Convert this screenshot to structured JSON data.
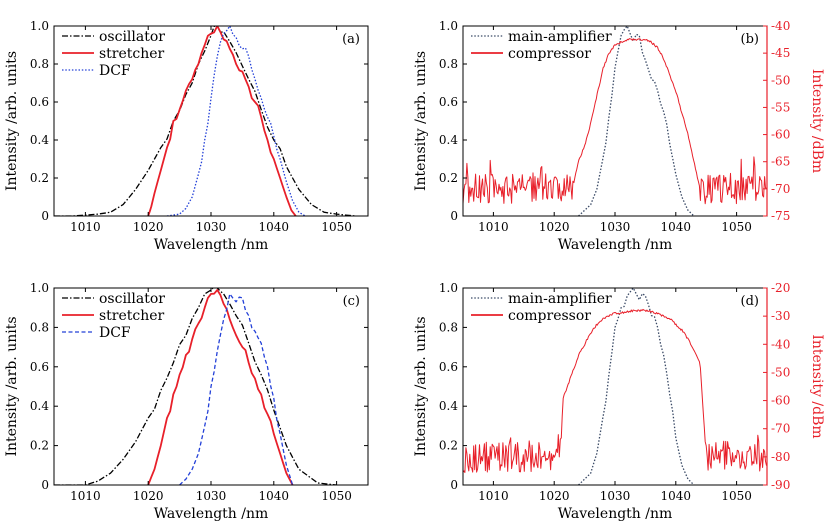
{
  "chart_data": [
    {
      "id": "a",
      "type": "line",
      "panel_label": "(a)",
      "xlabel": "Wavelength /nm",
      "ylabel": "Intensity /arb. units",
      "xlim": [
        1005,
        1055
      ],
      "ylim": [
        0,
        1.0
      ],
      "xticks": [
        "1010",
        "1020",
        "1030",
        "1040",
        "1050"
      ],
      "xtick_values": [
        1010,
        1020,
        1030,
        1040,
        1050
      ],
      "yticks": [
        "0",
        "0.2",
        "0.4",
        "0.6",
        "0.8",
        "1.0"
      ],
      "ytick_values": [
        0,
        0.2,
        0.4,
        0.6,
        0.8,
        1.0
      ],
      "legend_position": "top-left",
      "series": [
        {
          "name": "oscillator",
          "color": "#000000",
          "style": "dashdot",
          "axis": "left",
          "x": [
            1005,
            1008,
            1012,
            1014,
            1016,
            1018,
            1020,
            1022,
            1024,
            1026,
            1028,
            1030,
            1031,
            1032,
            1034,
            1036,
            1038,
            1040,
            1042,
            1044,
            1046,
            1048,
            1050,
            1053
          ],
          "y": [
            0,
            0,
            0.01,
            0.02,
            0.06,
            0.14,
            0.24,
            0.36,
            0.5,
            0.64,
            0.8,
            0.95,
            1.0,
            0.97,
            0.86,
            0.72,
            0.56,
            0.4,
            0.26,
            0.14,
            0.06,
            0.02,
            0.01,
            0
          ]
        },
        {
          "name": "stretcher",
          "color": "#e8202a",
          "style": "solid",
          "axis": "left",
          "x": [
            1020,
            1020.5,
            1021,
            1022,
            1023,
            1024,
            1025,
            1026,
            1027,
            1028,
            1029,
            1030,
            1031,
            1032,
            1033,
            1034,
            1035,
            1036,
            1037,
            1038,
            1039,
            1040,
            1041,
            1042,
            1042.8,
            1043.5
          ],
          "y": [
            0,
            0.05,
            0.12,
            0.24,
            0.36,
            0.5,
            0.56,
            0.66,
            0.72,
            0.8,
            0.9,
            0.96,
            1.0,
            0.93,
            0.88,
            0.8,
            0.76,
            0.68,
            0.6,
            0.52,
            0.4,
            0.3,
            0.2,
            0.1,
            0.03,
            0
          ]
        },
        {
          "name": "DCF",
          "color": "#2340d8",
          "style": "dotted",
          "axis": "left",
          "x": [
            1023,
            1025,
            1026,
            1027,
            1028,
            1029,
            1030,
            1031,
            1032,
            1033,
            1034,
            1035,
            1036,
            1037,
            1038,
            1039,
            1040,
            1041,
            1042,
            1043,
            1044,
            1045
          ],
          "y": [
            0,
            0.01,
            0.04,
            0.1,
            0.22,
            0.4,
            0.62,
            0.84,
            0.96,
            1.0,
            0.94,
            0.88,
            0.84,
            0.72,
            0.62,
            0.52,
            0.42,
            0.3,
            0.18,
            0.08,
            0.02,
            0
          ]
        }
      ]
    },
    {
      "id": "b",
      "type": "line",
      "panel_label": "(b)",
      "xlabel": "Wavelength /nm",
      "ylabel": "Intensity /arb. units",
      "y2label": "Intensity /dBm",
      "xlim": [
        1005,
        1055
      ],
      "ylim": [
        0,
        1.0
      ],
      "y2lim": [
        -75,
        -40
      ],
      "xticks": [
        "1010",
        "1020",
        "1030",
        "1040",
        "1050"
      ],
      "xtick_values": [
        1010,
        1020,
        1030,
        1040,
        1050
      ],
      "yticks": [
        "0",
        "0.2",
        "0.4",
        "0.6",
        "0.8",
        "1.0"
      ],
      "ytick_values": [
        0,
        0.2,
        0.4,
        0.6,
        0.8,
        1.0
      ],
      "y2ticks": [
        "-75",
        "-70",
        "-65",
        "-60",
        "-55",
        "-50",
        "-45",
        "-40"
      ],
      "y2tick_values": [
        -75,
        -70,
        -65,
        -60,
        -55,
        -50,
        -45,
        -40
      ],
      "legend_position": "top-left",
      "series": [
        {
          "name": "main-amplifier",
          "color": "#3a4a66",
          "style": "dotted",
          "axis": "left",
          "x": [
            1024,
            1026,
            1027,
            1028,
            1029,
            1030,
            1031,
            1032,
            1033,
            1034,
            1035,
            1036,
            1037,
            1038,
            1039,
            1040,
            1041,
            1042,
            1043
          ],
          "y": [
            0,
            0.06,
            0.14,
            0.3,
            0.52,
            0.78,
            0.95,
            1.0,
            0.92,
            0.95,
            0.82,
            0.72,
            0.66,
            0.55,
            0.38,
            0.22,
            0.1,
            0.03,
            0
          ]
        },
        {
          "name": "compressor",
          "color": "#e8202a",
          "style": "solid",
          "axis": "right",
          "noise": true,
          "x": [
            1005,
            1023,
            1024,
            1025,
            1026,
            1027,
            1028,
            1029,
            1030,
            1031,
            1032,
            1033,
            1034,
            1035,
            1036,
            1037,
            1038,
            1039,
            1040,
            1041,
            1042,
            1043,
            1044,
            1045,
            1055
          ],
          "y": [
            -70,
            -70,
            -65,
            -62,
            -58,
            -53,
            -48,
            -45,
            -43.5,
            -43,
            -42.5,
            -42.5,
            -42.5,
            -42.5,
            -43,
            -44,
            -46,
            -49,
            -52,
            -56,
            -60,
            -65,
            -70,
            -70,
            -70
          ]
        }
      ]
    },
    {
      "id": "c",
      "type": "line",
      "panel_label": "(c)",
      "xlabel": "Wavelength /nm",
      "ylabel": "Intensity /arb. units",
      "xlim": [
        1005,
        1055
      ],
      "ylim": [
        0,
        1.0
      ],
      "xticks": [
        "1010",
        "1020",
        "1030",
        "1040",
        "1050"
      ],
      "xtick_values": [
        1010,
        1020,
        1030,
        1040,
        1050
      ],
      "yticks": [
        "0",
        "0.2",
        "0.4",
        "0.6",
        "0.8",
        "1.0"
      ],
      "ytick_values": [
        0,
        0.2,
        0.4,
        0.6,
        0.8,
        1.0
      ],
      "legend_position": "top-left",
      "series": [
        {
          "name": "oscillator",
          "color": "#000000",
          "style": "dashdot",
          "axis": "left",
          "x": [
            1005,
            1010,
            1012,
            1014,
            1016,
            1018,
            1020,
            1022,
            1024,
            1026,
            1028,
            1030,
            1031,
            1032,
            1034,
            1036,
            1038,
            1040,
            1042,
            1044,
            1047,
            1050
          ],
          "y": [
            0,
            0,
            0.02,
            0.06,
            0.13,
            0.22,
            0.34,
            0.48,
            0.62,
            0.76,
            0.9,
            0.99,
            1.0,
            0.97,
            0.86,
            0.72,
            0.56,
            0.38,
            0.2,
            0.08,
            0.01,
            0
          ]
        },
        {
          "name": "stretcher",
          "color": "#e8202a",
          "style": "solid",
          "axis": "left",
          "x": [
            1020,
            1021,
            1022,
            1023,
            1024,
            1025,
            1026,
            1027,
            1028,
            1029,
            1030,
            1031,
            1032,
            1033,
            1034,
            1035,
            1036,
            1037,
            1038,
            1039,
            1040,
            1041,
            1042,
            1043
          ],
          "y": [
            0,
            0.08,
            0.2,
            0.34,
            0.46,
            0.56,
            0.66,
            0.74,
            0.82,
            0.9,
            0.97,
            0.99,
            0.92,
            0.84,
            0.76,
            0.7,
            0.62,
            0.54,
            0.46,
            0.36,
            0.26,
            0.16,
            0.06,
            0
          ]
        },
        {
          "name": "DCF",
          "color": "#2340d8",
          "style": "dashed",
          "axis": "left",
          "x": [
            1025,
            1026,
            1027,
            1028,
            1029,
            1030,
            1031,
            1032,
            1033,
            1034,
            1035,
            1036,
            1037,
            1038,
            1039,
            1040,
            1041,
            1042,
            1043
          ],
          "y": [
            0,
            0.03,
            0.08,
            0.16,
            0.3,
            0.5,
            0.68,
            0.84,
            0.97,
            0.93,
            0.95,
            0.86,
            0.78,
            0.72,
            0.6,
            0.44,
            0.26,
            0.1,
            0
          ]
        }
      ]
    },
    {
      "id": "d",
      "type": "line",
      "panel_label": "(d)",
      "xlabel": "Wavelength /nm",
      "ylabel": "Intensity /arb. units",
      "y2label": "Intensity /dBm",
      "xlim": [
        1005,
        1055
      ],
      "ylim": [
        0,
        1.0
      ],
      "y2lim": [
        -90,
        -20
      ],
      "xticks": [
        "1010",
        "1020",
        "1030",
        "1040",
        "1050"
      ],
      "xtick_values": [
        1010,
        1020,
        1030,
        1040,
        1050
      ],
      "yticks": [
        "0",
        "0.2",
        "0.4",
        "0.6",
        "0.8",
        "1.0"
      ],
      "ytick_values": [
        0,
        0.2,
        0.4,
        0.6,
        0.8,
        1.0
      ],
      "y2ticks": [
        "-90",
        "-80",
        "-70",
        "-60",
        "-50",
        "-40",
        "-30",
        "-20"
      ],
      "y2tick_values": [
        -90,
        -80,
        -70,
        -60,
        -50,
        -40,
        -30,
        -20
      ],
      "legend_position": "top-left",
      "series": [
        {
          "name": "main-amplifier",
          "color": "#3a4a66",
          "style": "dotted",
          "axis": "left",
          "x": [
            1024,
            1026,
            1027,
            1028,
            1029,
            1030,
            1031,
            1032,
            1033,
            1034,
            1035,
            1036,
            1037,
            1038,
            1039,
            1040,
            1041,
            1042,
            1043
          ],
          "y": [
            0,
            0.06,
            0.16,
            0.34,
            0.56,
            0.8,
            0.9,
            0.96,
            1.0,
            0.94,
            0.96,
            0.86,
            0.8,
            0.66,
            0.46,
            0.24,
            0.1,
            0.03,
            0
          ]
        },
        {
          "name": "compressor",
          "color": "#e8202a",
          "style": "solid",
          "axis": "right",
          "noise": true,
          "x": [
            1005,
            1021,
            1021.5,
            1022,
            1023,
            1024,
            1025,
            1026,
            1027,
            1028,
            1029,
            1030,
            1031,
            1032,
            1033,
            1034,
            1035,
            1036,
            1037,
            1038,
            1039,
            1040,
            1041,
            1042,
            1043,
            1044,
            1045,
            1055
          ],
          "y": [
            -80,
            -80,
            -58,
            -56,
            -50,
            -44,
            -40,
            -36,
            -33,
            -31,
            -30,
            -29,
            -29,
            -28.5,
            -28,
            -28,
            -28,
            -28.5,
            -29,
            -30,
            -31,
            -33,
            -35,
            -38,
            -42,
            -47,
            -80,
            -80
          ]
        }
      ]
    }
  ]
}
